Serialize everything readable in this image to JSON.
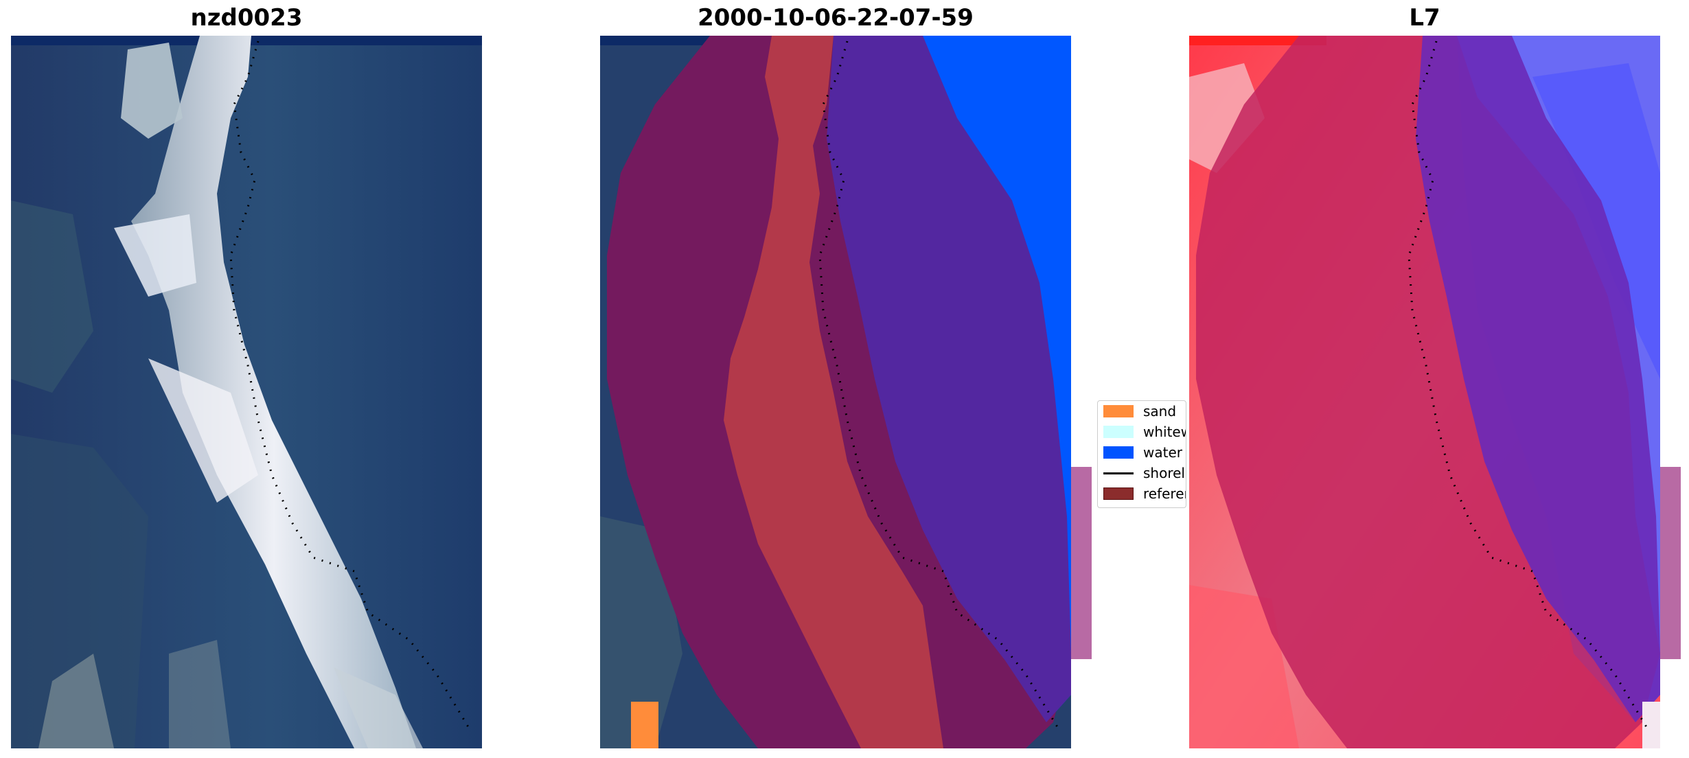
{
  "panels": [
    {
      "id": "rgb",
      "title": "nzd0023"
    },
    {
      "id": "classified",
      "title": "2000-10-06-22-07-59"
    },
    {
      "id": "mndwi",
      "title": "L7"
    }
  ],
  "legend": {
    "items": [
      {
        "label": "sand",
        "color": "#ff8c3a",
        "kind": "patch"
      },
      {
        "label": "whitewater",
        "color": "#ccffff",
        "kind": "patch"
      },
      {
        "label": "water",
        "color": "#0054ff",
        "kind": "patch"
      },
      {
        "label": "shoreline",
        "color": "#000000",
        "kind": "line"
      },
      {
        "label": "reference",
        "color": "#8b2c2c",
        "kind": "patch"
      }
    ]
  },
  "colors": {
    "ocean": "#233f6e",
    "beach": "#d9dde6",
    "buffer_overlay": "#7a1a5e",
    "land_class": "#b3394a",
    "water_class": "#5327a0",
    "water_bright": "#0057ff",
    "ndwi_land": "#f25b6b",
    "ndwi_water": "#5d3fe0",
    "shoreline": "#000000"
  }
}
